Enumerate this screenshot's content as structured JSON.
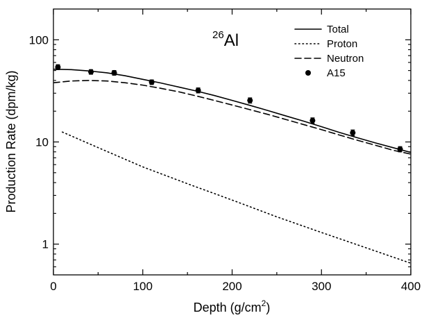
{
  "chart_data": {
    "type": "line",
    "xlabel": {
      "prefix": "Depth (g/cm",
      "sup": "2",
      "suffix": ")"
    },
    "ylabel": "Production Rate (dpm/kg)",
    "xlim": [
      0,
      400
    ],
    "ylim": [
      0.5,
      200
    ],
    "yscale": "log",
    "x_ticks": [
      0,
      100,
      200,
      300,
      400
    ],
    "y_ticks": [
      1,
      10,
      100
    ],
    "grid": false,
    "legend_position": "top-right",
    "annotation": {
      "sup": "26",
      "text": "Al"
    },
    "series": [
      {
        "name": "Total",
        "style": "solid",
        "x": [
          0,
          20,
          40,
          60,
          80,
          100,
          120,
          140,
          160,
          180,
          200,
          220,
          240,
          260,
          280,
          300,
          320,
          340,
          360,
          380,
          400
        ],
        "y": [
          51.5,
          51,
          49.5,
          47.5,
          44.5,
          41,
          37.8,
          34.5,
          31.5,
          28.5,
          25.5,
          22.8,
          20.3,
          18,
          16,
          14.1,
          12.4,
          11,
          9.8,
          8.8,
          7.9
        ]
      },
      {
        "name": "Proton",
        "style": "dotted",
        "x": [
          10,
          50,
          100,
          150,
          200,
          250,
          300,
          350,
          400
        ],
        "y": [
          12.5,
          8.8,
          5.7,
          3.9,
          2.7,
          1.85,
          1.3,
          0.92,
          0.65
        ]
      },
      {
        "name": "Neutron",
        "style": "dashed",
        "x": [
          0,
          20,
          40,
          60,
          80,
          100,
          120,
          140,
          160,
          180,
          200,
          220,
          240,
          260,
          280,
          300,
          320,
          340,
          360,
          380,
          400
        ],
        "y": [
          38,
          39.5,
          40,
          39.5,
          38,
          36,
          33.5,
          31,
          28.2,
          25.5,
          23,
          20.7,
          18.6,
          16.6,
          14.8,
          13.2,
          11.7,
          10.4,
          9.3,
          8.3,
          7.6
        ]
      },
      {
        "name": "A15",
        "style": "marker",
        "x": [
          5,
          42,
          68,
          110,
          162,
          220,
          290,
          335,
          388
        ],
        "y": [
          54,
          48.5,
          47.5,
          38.5,
          32,
          25.5,
          16.2,
          12.3,
          8.5
        ],
        "err": [
          3,
          2.5,
          2.5,
          2,
          1.8,
          1.5,
          1,
          0.8,
          0.5
        ]
      }
    ]
  }
}
